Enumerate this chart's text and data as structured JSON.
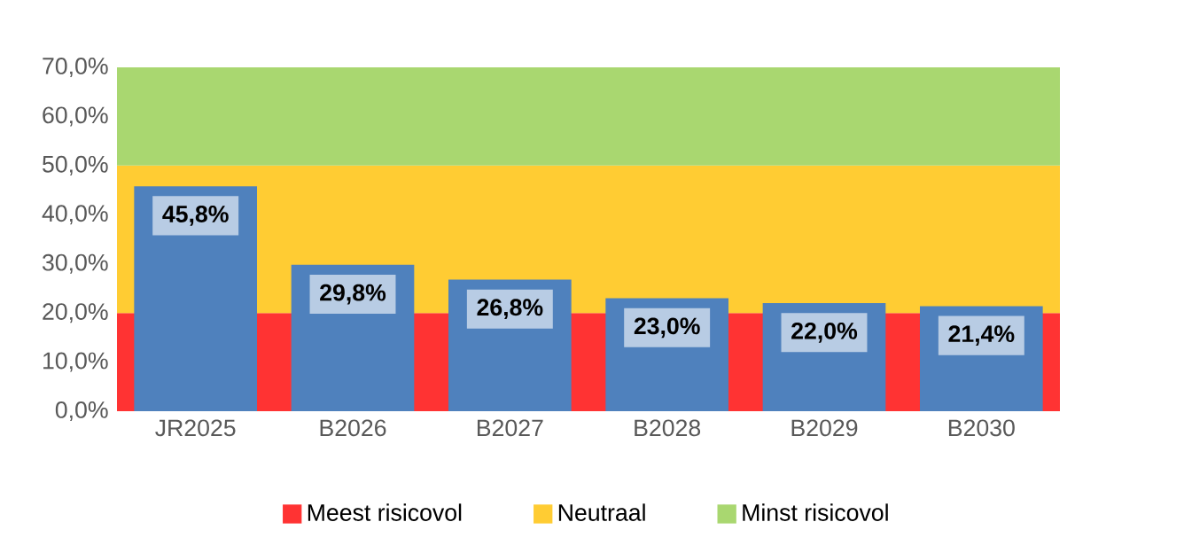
{
  "chart_data": {
    "type": "bar",
    "categories": [
      "JR2025",
      "B2026",
      "B2027",
      "B2028",
      "B2029",
      "B2030"
    ],
    "values": [
      45.8,
      29.8,
      26.8,
      23.0,
      22.0,
      21.4
    ],
    "value_labels": [
      "45,8%",
      "29,8%",
      "26,8%",
      "23,0%",
      "22,0%",
      "21,4%"
    ],
    "color": "#4f81bd",
    "ylim": [
      0,
      70
    ],
    "yticks": [
      {
        "value": 0,
        "label": "0,0%"
      },
      {
        "value": 10,
        "label": "10,0%"
      },
      {
        "value": 20,
        "label": "20,0%"
      },
      {
        "value": 30,
        "label": "30,0%"
      },
      {
        "value": 40,
        "label": "40,0%"
      },
      {
        "value": 50,
        "label": "50,0%"
      },
      {
        "value": 60,
        "label": "60,0%"
      },
      {
        "value": 70,
        "label": "70,0%"
      }
    ],
    "bands": [
      {
        "axis": "y",
        "from": 0,
        "to": 20,
        "label": "Meest risicovol",
        "color": "#ff3333"
      },
      {
        "axis": "y",
        "from": 20,
        "to": 50,
        "label": "Neutraal",
        "color": "#ffcc33"
      },
      {
        "axis": "y",
        "from": 50,
        "to": 70,
        "label": "Minst risicovol",
        "color": "#a9d770"
      }
    ],
    "legend": "bottom"
  }
}
